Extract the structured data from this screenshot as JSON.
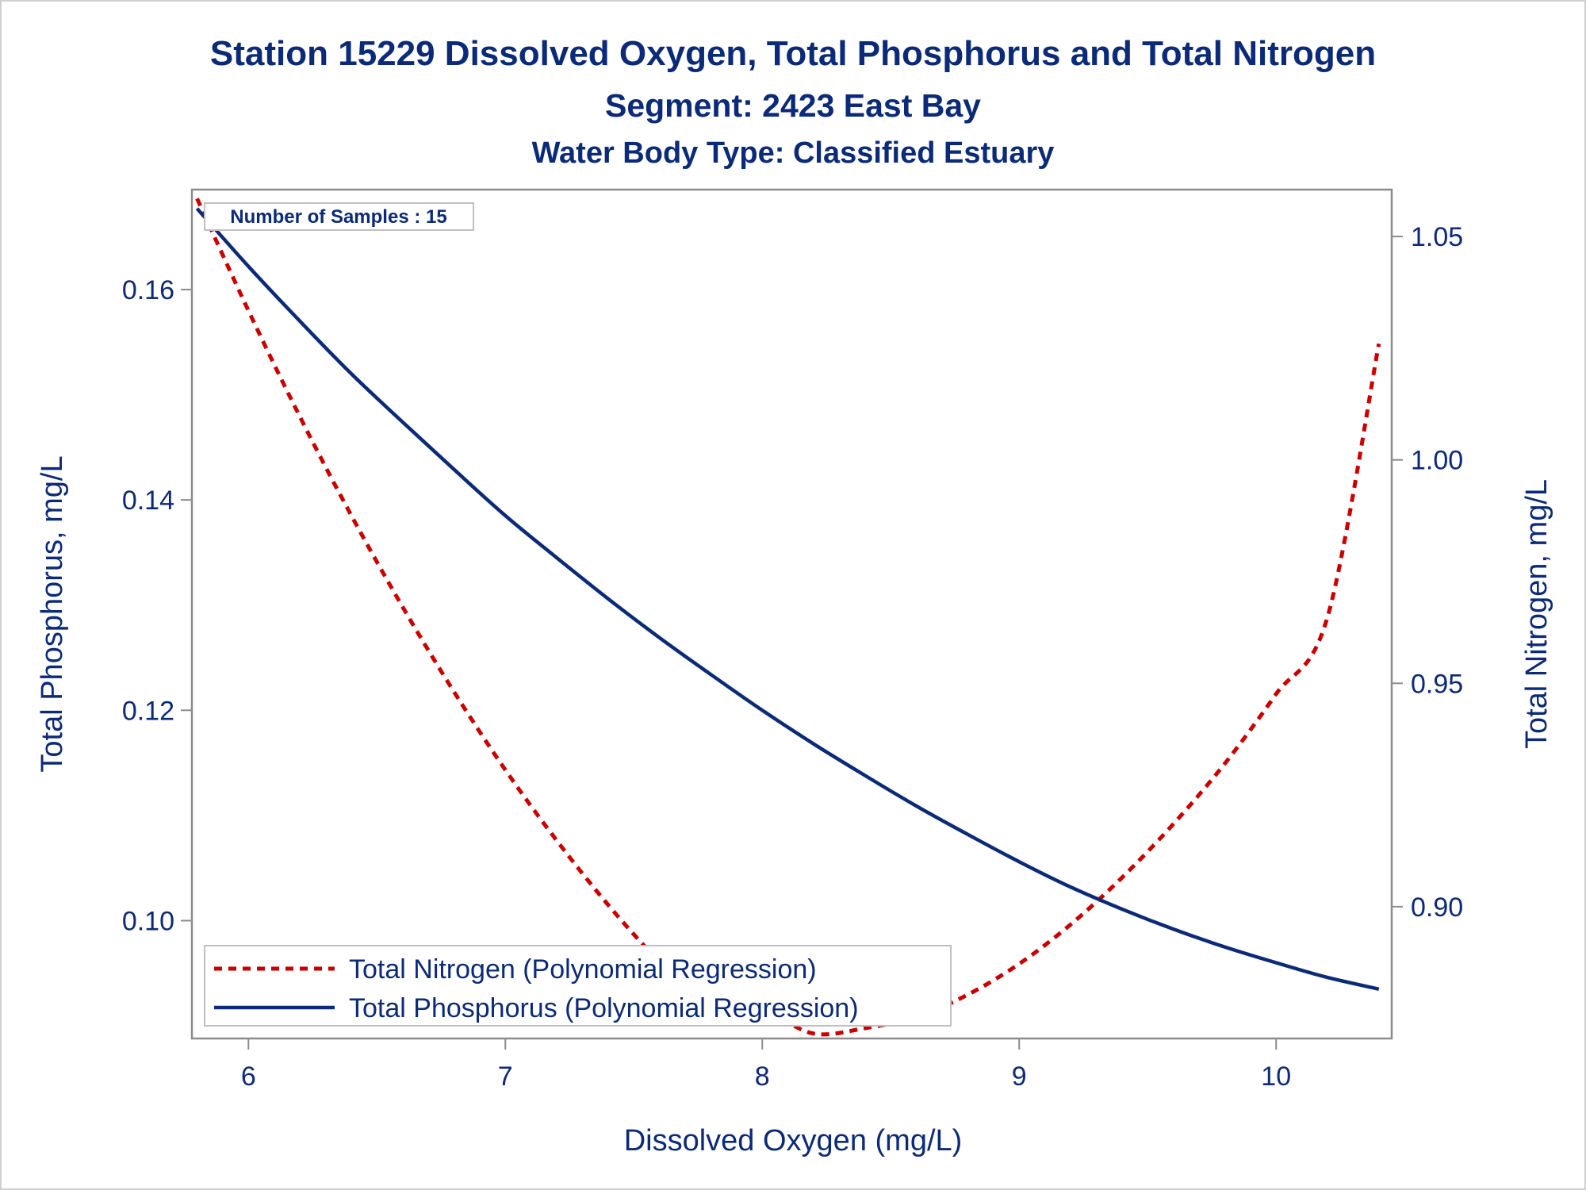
{
  "titles": {
    "line1": "Station 15229  Dissolved Oxygen, Total Phosphorus and Total Nitrogen",
    "line2": "Segment: 2423  East Bay",
    "line3": "Water Body Type: Classified Estuary"
  },
  "inset_label": "Number of Samples : 15",
  "colors": {
    "title": "#0b2a78",
    "phosphorus": "#0b2a78",
    "nitrogen": "#cc0000",
    "axis_frame": "#8c8c8c"
  },
  "chart_data": {
    "type": "line",
    "title": "Station 15229  Dissolved Oxygen, Total Phosphorus and Total Nitrogen",
    "xlabel": "Dissolved Oxygen (mg/L)",
    "ylabel": "Total Phosphorus, mg/L",
    "y2label": "Total Nitrogen, mg/L",
    "xlim": [
      5.78,
      10.45
    ],
    "ylim": [
      0.0888,
      0.1695
    ],
    "y2lim": [
      0.8705,
      1.0605
    ],
    "xticks": [
      "6",
      "7",
      "8",
      "9",
      "10"
    ],
    "yticks": [
      "0.10",
      "0.12",
      "0.14",
      "0.16"
    ],
    "y2ticks": [
      "0.90",
      "0.95",
      "1.00",
      "1.05"
    ],
    "grid": false,
    "legend_position": "bottom-left inside",
    "series": [
      {
        "name": "Total Nitrogen (Polynomial Regression)",
        "axis": "right",
        "style": "dashed",
        "x": [
          5.8,
          6.0,
          6.2,
          6.4,
          6.6,
          6.8,
          7.0,
          7.2,
          7.4,
          7.6,
          7.8,
          8.0,
          8.2,
          8.4,
          8.6,
          8.8,
          9.0,
          9.2,
          9.4,
          9.6,
          9.8,
          10.0,
          10.2,
          10.4
        ],
        "values": [
          1.0585,
          1.0334,
          1.0097,
          0.9876,
          0.9671,
          0.9481,
          0.9306,
          0.9148,
          0.9004,
          0.8876,
          0.8764,
          0.8767,
          0.8716,
          0.8728,
          0.8753,
          0.8803,
          0.8872,
          0.896,
          0.9065,
          0.9185,
          0.932,
          0.9476,
          0.9648,
          1.026
        ]
      },
      {
        "name": "Total Phosphorus (Polynomial Regression)",
        "axis": "left",
        "style": "solid",
        "x": [
          5.8,
          6.0,
          6.2,
          6.4,
          6.6,
          6.8,
          7.0,
          7.2,
          7.4,
          7.6,
          7.8,
          8.0,
          8.2,
          8.4,
          8.6,
          8.8,
          9.0,
          9.2,
          9.4,
          9.6,
          9.8,
          10.0,
          10.2,
          10.4
        ],
        "values": [
          0.1677,
          0.1622,
          0.157,
          0.152,
          0.1474,
          0.1429,
          0.1385,
          0.1345,
          0.1306,
          0.1269,
          0.1234,
          0.12,
          0.1168,
          0.1138,
          0.1109,
          0.1082,
          0.1056,
          0.1032,
          0.1011,
          0.0992,
          0.0975,
          0.096,
          0.0946,
          0.0935
        ]
      }
    ]
  }
}
